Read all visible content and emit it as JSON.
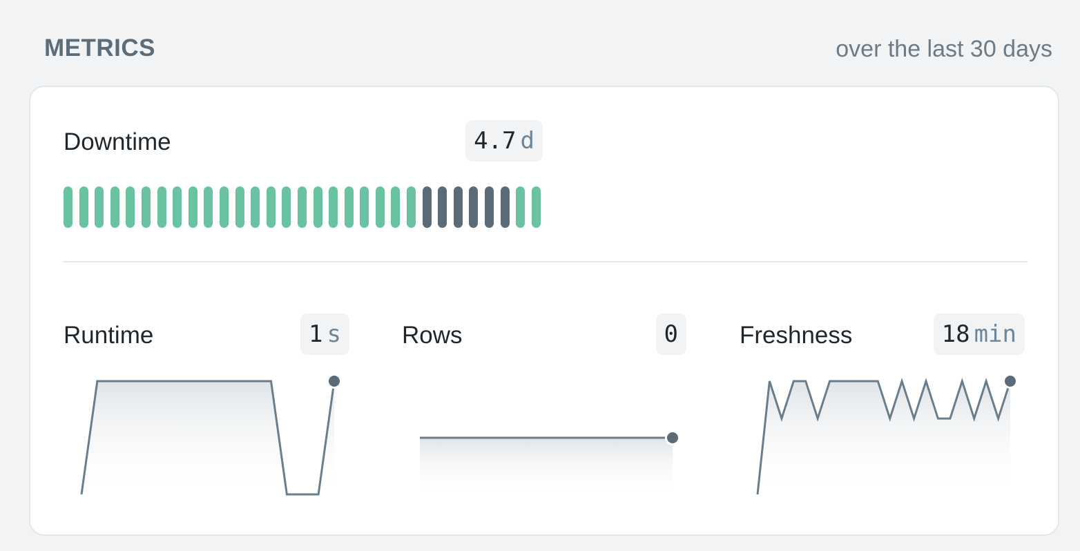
{
  "header": {
    "title": "METRICS",
    "subtitle": "over the last 30 days"
  },
  "downtime": {
    "label": "Downtime",
    "value": "4.7",
    "unit": "d",
    "days": [
      "up",
      "up",
      "up",
      "up",
      "up",
      "up",
      "up",
      "up",
      "up",
      "up",
      "up",
      "up",
      "up",
      "up",
      "up",
      "up",
      "up",
      "up",
      "up",
      "up",
      "up",
      "up",
      "up",
      "down",
      "down",
      "down",
      "down",
      "down",
      "down",
      "up",
      "up"
    ],
    "colors": {
      "up": "#6ac3a0",
      "down": "#5b6b77"
    }
  },
  "metrics": [
    {
      "key": "runtime",
      "label": "Runtime",
      "value": "1",
      "unit": "s",
      "series": [
        0,
        1,
        1,
        1,
        1,
        1,
        1,
        1,
        1,
        1,
        1,
        1,
        1,
        0,
        0,
        0,
        1
      ]
    },
    {
      "key": "rows",
      "label": "Rows",
      "value": "0",
      "unit": "",
      "series": [
        0,
        0,
        0,
        0,
        0,
        0,
        0,
        0,
        0,
        0,
        0,
        0,
        0,
        0,
        0,
        0,
        0
      ]
    },
    {
      "key": "freshness",
      "label": "Freshness",
      "value": "18",
      "unit": "min",
      "series": [
        0,
        1,
        0.67,
        1,
        1,
        0.67,
        1,
        1,
        1,
        1,
        1,
        0.67,
        1,
        0.67,
        1,
        0.67,
        0.67,
        1,
        0.67,
        1,
        0.67,
        1
      ]
    }
  ],
  "colors": {
    "line": "#6a7d8a",
    "dot": "#5b6b77",
    "fill_top": "#dfe4e8"
  }
}
